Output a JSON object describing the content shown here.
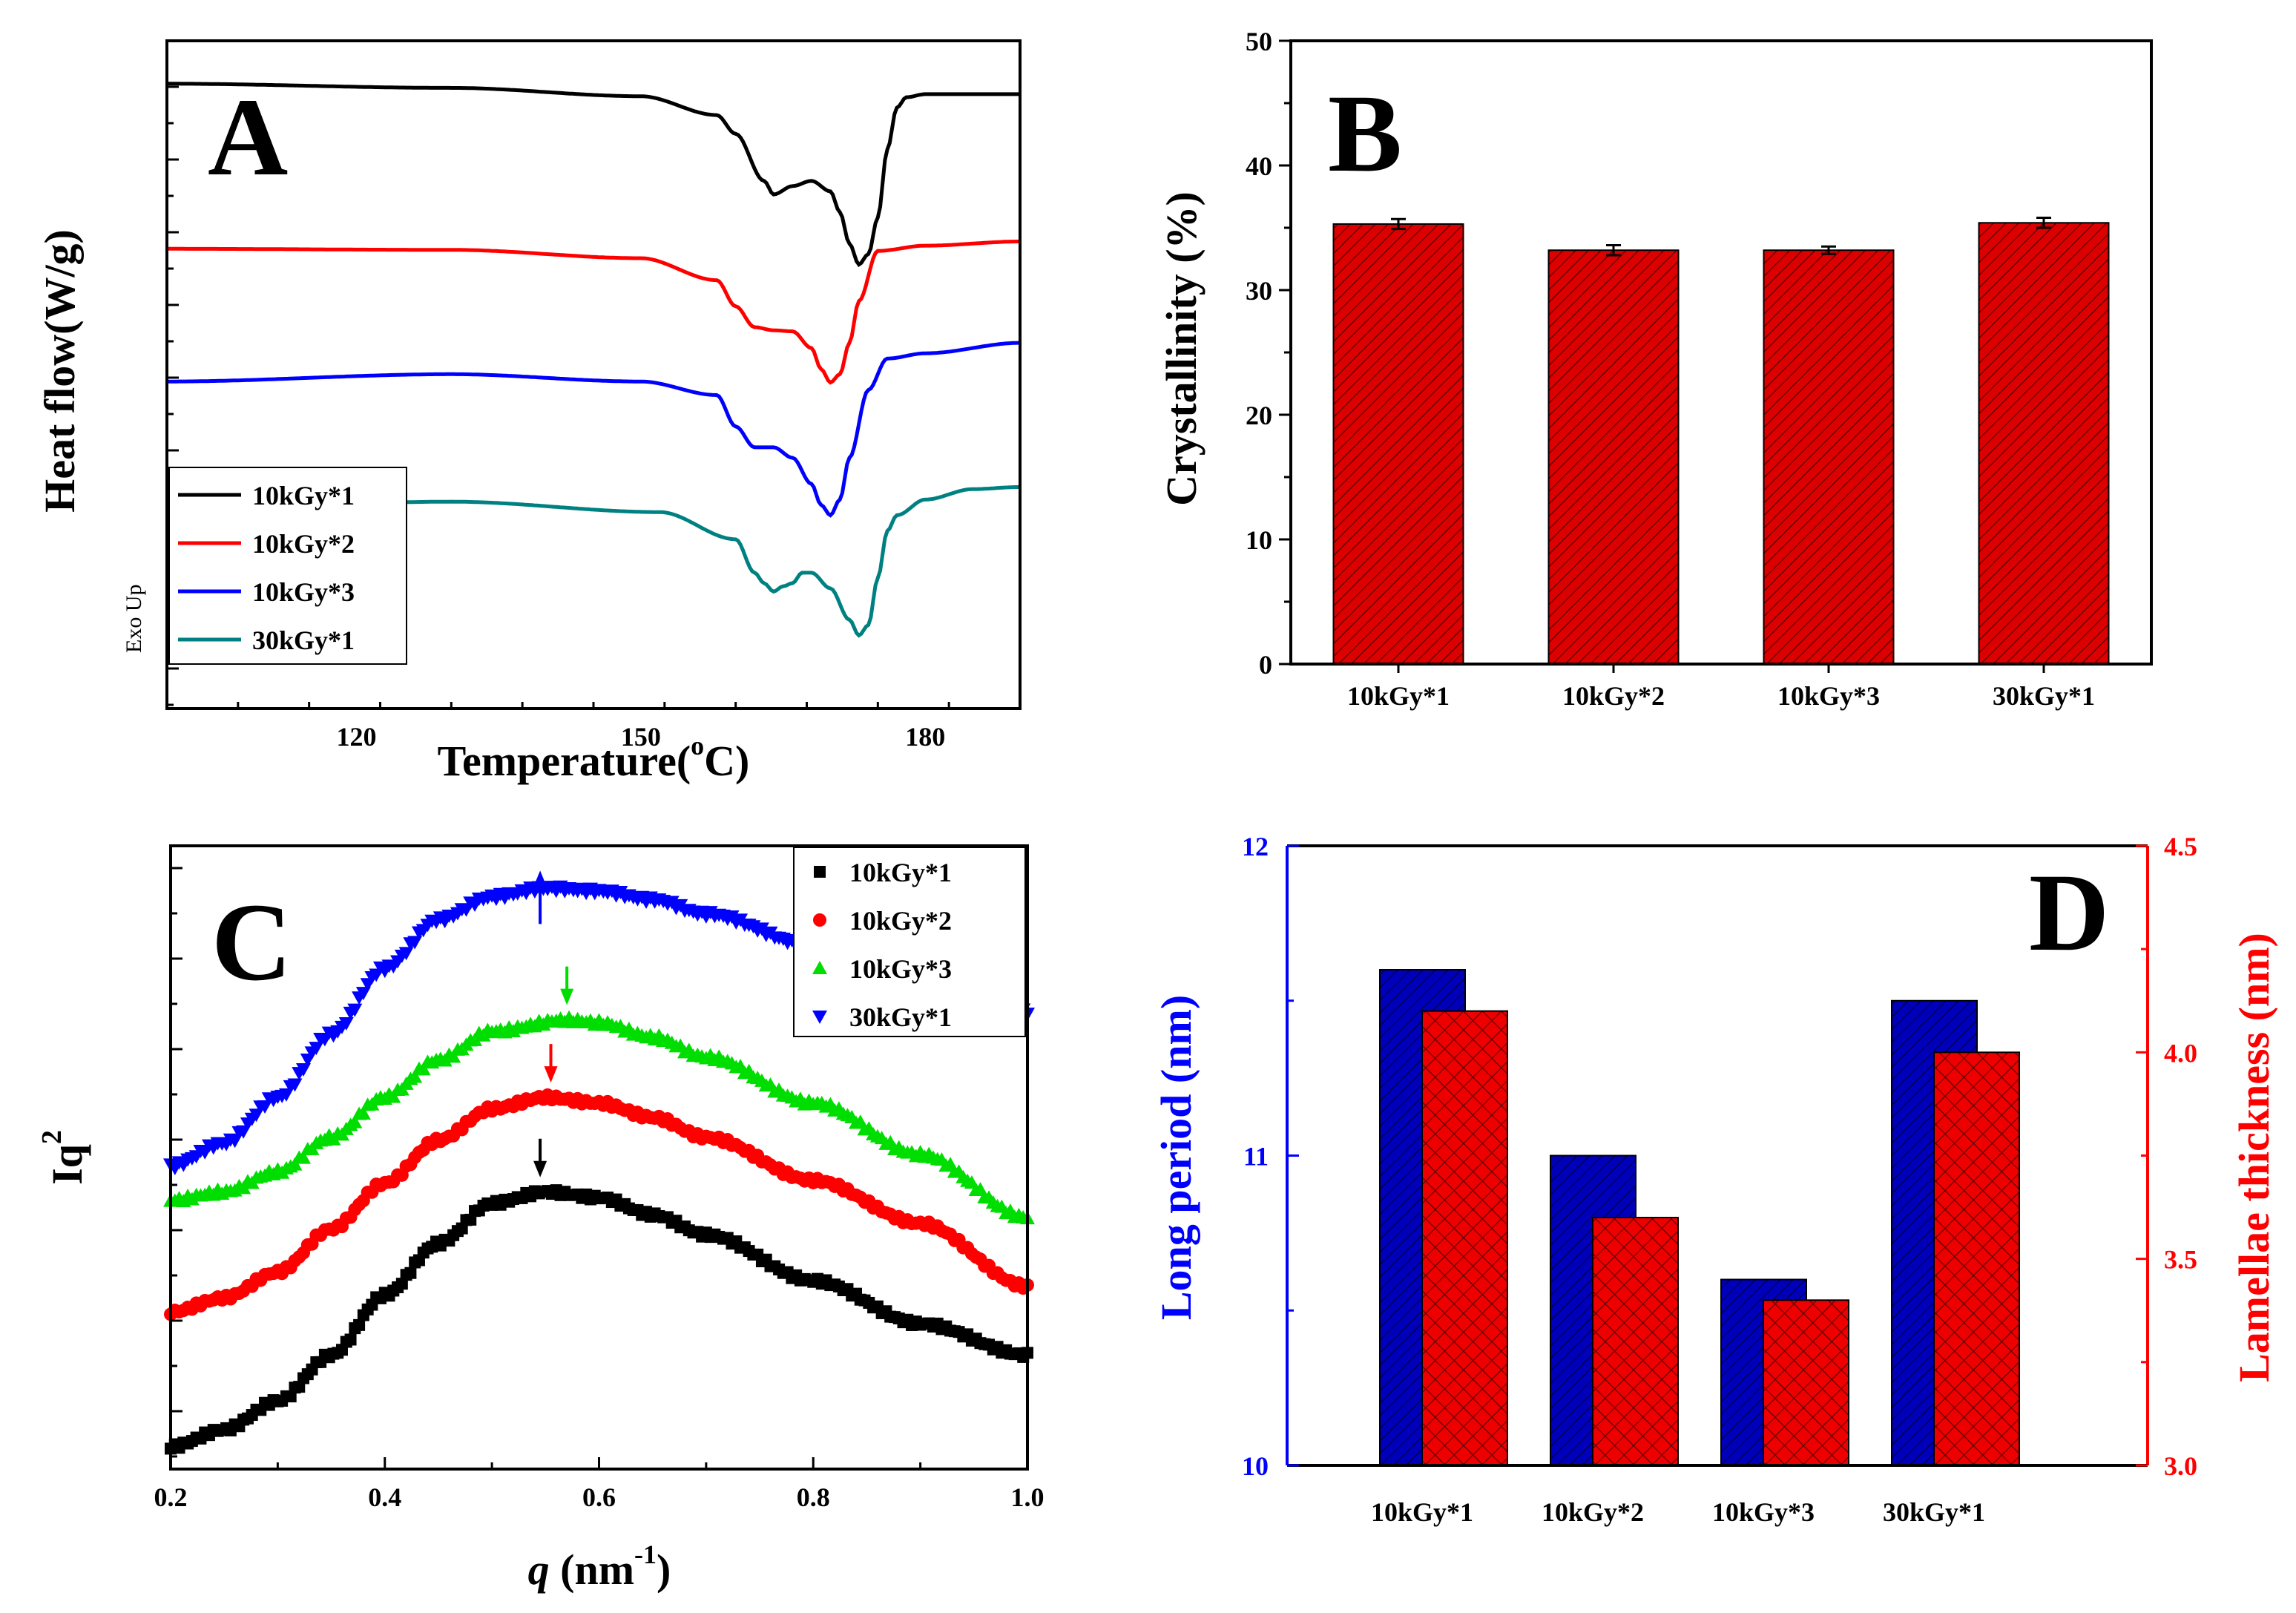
{
  "chart_data": [
    {
      "panel": "A",
      "type": "line",
      "xlabel": "Temperature(",
      "xlabel_sup": "o",
      "xlabel_tail": "C)",
      "ylabel": "Heat flow(W/g)",
      "annotation": "Exo Up",
      "xlim": [
        100,
        190
      ],
      "xticks": [
        "120",
        "150",
        "180"
      ],
      "legend": "bottom-left",
      "colors": [
        "#000000",
        "#ff0000",
        "#0000ff",
        "#008080"
      ],
      "series": [
        {
          "name": "10kGy*1",
          "x": [
            100,
            130,
            150,
            158,
            160,
            163,
            164,
            166,
            168,
            170,
            171,
            172,
            173,
            174,
            175,
            176,
            177,
            178,
            180,
            190
          ],
          "y": [
            0.2,
            0.6,
            1.4,
            3.2,
            5.0,
            9.5,
            10.8,
            10.0,
            9.5,
            10.5,
            12.5,
            15.5,
            17.5,
            16.5,
            13.0,
            6.5,
            2.5,
            1.5,
            1.2,
            1.2
          ]
        },
        {
          "name": "10kGy*2",
          "x": [
            100,
            130,
            150,
            158,
            160,
            162,
            164,
            166,
            168,
            169,
            170,
            171,
            172,
            173,
            175,
            180,
            190
          ],
          "y": [
            16.0,
            16.1,
            16.9,
            19.0,
            21.5,
            23.5,
            23.8,
            23.9,
            25.5,
            27.5,
            28.8,
            28.0,
            25.0,
            21.0,
            16.2,
            15.7,
            15.3
          ]
        },
        {
          "name": "10kGy*3",
          "x": [
            100,
            130,
            150,
            158,
            160,
            162,
            164,
            166,
            168,
            169,
            170,
            171,
            172,
            174,
            176,
            180,
            190
          ],
          "y": [
            28.7,
            28.0,
            28.7,
            30.0,
            33.0,
            35.0,
            35.0,
            36.0,
            38.5,
            40.5,
            41.5,
            40.0,
            36.0,
            29.5,
            26.5,
            26.0,
            25.0
          ]
        },
        {
          "name": "30kGy*1",
          "x": [
            100,
            130,
            152,
            160,
            162,
            163,
            164,
            165,
            166,
            167,
            168,
            170,
            172,
            173,
            174,
            175,
            176,
            177,
            180,
            185,
            190
          ],
          "y": [
            41.0,
            40.2,
            41.2,
            43.8,
            47.0,
            48.0,
            48.8,
            48.3,
            48.0,
            47.0,
            47.0,
            48.5,
            51.5,
            53.0,
            52.0,
            47.5,
            43.0,
            41.5,
            40.0,
            39.0,
            38.8
          ]
        }
      ]
    },
    {
      "panel": "B",
      "type": "bar",
      "categories": [
        "10kGy*1",
        "10kGy*2",
        "10kGy*3",
        "30kGy*1"
      ],
      "values": [
        35.3,
        33.2,
        33.2,
        35.4
      ],
      "errors": [
        0.4,
        0.4,
        0.3,
        0.4
      ],
      "ylabel": "Crystallinity (%)",
      "ylim": [
        0,
        50
      ],
      "yticks": [
        "0",
        "10",
        "20",
        "30",
        "40",
        "50"
      ],
      "bar_color": "#dd0000"
    },
    {
      "panel": "C",
      "type": "scatter",
      "xlabel": "q",
      "xlabel_unit": "(nm",
      "xlabel_sup": "-1",
      "xlabel_tail": ")",
      "ylabel": "Iq",
      "ylabel_sup": "2",
      "xlim": [
        0.2,
        1.0
      ],
      "xticks": [
        "0.2",
        "0.4",
        "0.6",
        "0.8",
        "1.0"
      ],
      "legend": "top-right",
      "colors": [
        "#000000",
        "#ff0000",
        "#00dd00",
        "#0000ff"
      ],
      "markers": [
        "square",
        "circle",
        "triangle-up",
        "triangle-down"
      ],
      "peak_q": [
        0.545,
        0.555,
        0.57,
        0.545
      ],
      "series": [
        {
          "name": "10kGy*1",
          "x": [
            0.2,
            0.25,
            0.3,
            0.35,
            0.4,
            0.45,
            0.5,
            0.55,
            0.6,
            0.65,
            0.7,
            0.8,
            0.9,
            1.0
          ],
          "y": [
            0.0,
            0.6,
            1.6,
            3.2,
            5.3,
            7.1,
            8.5,
            8.9,
            8.7,
            8.1,
            7.4,
            5.8,
            4.3,
            3.2
          ]
        },
        {
          "name": "10kGy*2",
          "x": [
            0.2,
            0.25,
            0.3,
            0.35,
            0.4,
            0.45,
            0.5,
            0.55,
            0.6,
            0.65,
            0.7,
            0.8,
            0.9,
            1.0
          ],
          "y": [
            4.7,
            5.2,
            6.1,
            7.6,
            9.2,
            10.7,
            11.8,
            12.2,
            12.0,
            11.5,
            10.8,
            9.3,
            7.8,
            5.6
          ]
        },
        {
          "name": "10kGy*3",
          "x": [
            0.2,
            0.25,
            0.3,
            0.35,
            0.4,
            0.45,
            0.5,
            0.57,
            0.6,
            0.65,
            0.7,
            0.8,
            0.9,
            1.0
          ],
          "y": [
            8.6,
            8.9,
            9.6,
            10.8,
            12.2,
            13.5,
            14.5,
            14.9,
            14.8,
            14.3,
            13.6,
            12.0,
            10.2,
            8.0
          ]
        },
        {
          "name": "30kGy*1",
          "x": [
            0.2,
            0.25,
            0.3,
            0.35,
            0.4,
            0.45,
            0.5,
            0.55,
            0.6,
            0.65,
            0.7,
            0.8,
            0.9,
            1.0
          ],
          "y": [
            9.8,
            10.6,
            12.2,
            14.4,
            16.7,
            18.4,
            19.2,
            19.5,
            19.4,
            19.1,
            18.6,
            17.5,
            16.4,
            15.2
          ]
        }
      ]
    },
    {
      "panel": "D",
      "type": "bar",
      "categories": [
        "10kGy*1",
        "10kGy*2",
        "10kGy*3",
        "30kGy*1"
      ],
      "series": [
        {
          "name": "Long period (nm)",
          "axis": "left",
          "values": [
            11.6,
            11.0,
            10.6,
            11.5
          ],
          "color": "#0000bb"
        },
        {
          "name": "Lamellae thickness (nm)",
          "axis": "right",
          "values": [
            4.1,
            3.6,
            3.4,
            4.0
          ],
          "color": "#ee0000"
        }
      ],
      "ylabel_left": "Long period (nm)",
      "ylabel_right": "Lamellae thickness (nm)",
      "ylim_left": [
        10,
        12
      ],
      "ylim_right": [
        3.0,
        4.5
      ],
      "yticks_left": [
        "10",
        "11",
        "12"
      ],
      "yticks_right": [
        "3.0",
        "3.5",
        "4.0",
        "4.5"
      ],
      "left_color": "#0000ff",
      "right_color": "#ff0000"
    }
  ]
}
